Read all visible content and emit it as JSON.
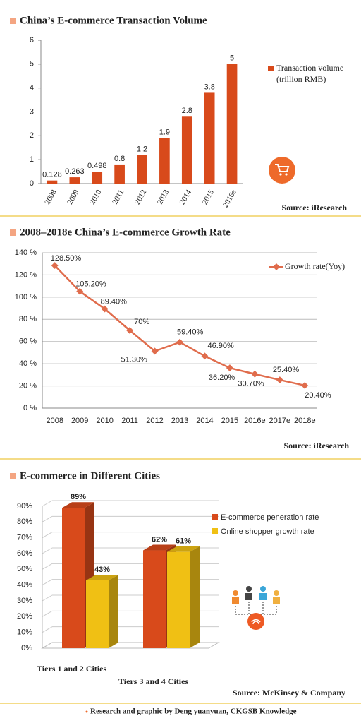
{
  "chart_data": [
    {
      "type": "bar",
      "title": "China’s E-commerce Transaction Volume",
      "categories": [
        "2008",
        "2009",
        "2010",
        "2011",
        "2012",
        "2013",
        "2014",
        "2015",
        "2016e"
      ],
      "series": [
        {
          "name": "Transaction volume (trillion RMB)",
          "color": "#d84a1b",
          "values": [
            0.128,
            0.263,
            0.498,
            0.8,
            1.2,
            1.9,
            2.8,
            3.8,
            5
          ]
        }
      ],
      "ylim": [
        0,
        6
      ],
      "yticks": [
        0,
        1,
        2,
        3,
        4,
        5,
        6
      ],
      "grid": false,
      "source": "Source: iResearch"
    },
    {
      "type": "line",
      "title": "2008–2018e China’s E-commerce Growth Rate",
      "categories": [
        "2008",
        "2009",
        "2010",
        "2011",
        "2012",
        "2013",
        "2014",
        "2015",
        "2016e",
        "2017e",
        "2018e"
      ],
      "series": [
        {
          "name": "Growth rate(Yoy)",
          "color": "#e06c4c",
          "values": [
            128.5,
            105.2,
            89.4,
            70,
            51.3,
            59.4,
            46.9,
            36.2,
            30.7,
            25.4,
            20.4
          ],
          "value_labels": [
            "128.50%",
            "105.20%",
            "89.40%",
            "70%",
            "51.30%",
            "59.40%",
            "46.90%",
            "36.20%",
            "30.70%",
            "25.40%",
            "20.40%"
          ]
        }
      ],
      "ylim": [
        0,
        140
      ],
      "yticks": [
        {
          "value": 0,
          "label": "0 %"
        },
        {
          "value": 20,
          "label": "20 %"
        },
        {
          "value": 40,
          "label": "40 %"
        },
        {
          "value": 60,
          "label": "60 %"
        },
        {
          "value": 80,
          "label": "80 %"
        },
        {
          "value": 100,
          "label": "100 %"
        },
        {
          "value": 120,
          "label": "120 %"
        },
        {
          "value": 140,
          "label": "140 %"
        }
      ],
      "grid": true,
      "source": "Source: iResearch"
    },
    {
      "type": "bar3d",
      "title": "E-commerce in Different Cities",
      "categories": [
        "Tiers 1 and 2 Cities",
        "Tiers 3 and 4 Cities"
      ],
      "series": [
        {
          "name": "E-commerce peneration rate",
          "color": "#d84a1b",
          "values": [
            89,
            62
          ],
          "value_labels": [
            "89%",
            "62%"
          ]
        },
        {
          "name": "Online shopper growth rate",
          "color": "#f0c014",
          "values": [
            43,
            61
          ],
          "value_labels": [
            "43%",
            "61%"
          ]
        }
      ],
      "ylim": [
        0,
        90
      ],
      "yticks": [
        {
          "value": 0,
          "label": "0%"
        },
        {
          "value": 10,
          "label": "10%"
        },
        {
          "value": 20,
          "label": "20%"
        },
        {
          "value": 30,
          "label": "30%"
        },
        {
          "value": 40,
          "label": "40%"
        },
        {
          "value": 50,
          "label": "50%"
        },
        {
          "value": 60,
          "label": "60%"
        },
        {
          "value": 70,
          "label": "70%"
        },
        {
          "value": 80,
          "label": "80%"
        },
        {
          "value": 90,
          "label": "90%"
        }
      ],
      "grid": true,
      "source": "Source: McKinsey & Company"
    }
  ],
  "footer": "Research and graphic by Deng yuanyuan, CKGSB Knowledge"
}
